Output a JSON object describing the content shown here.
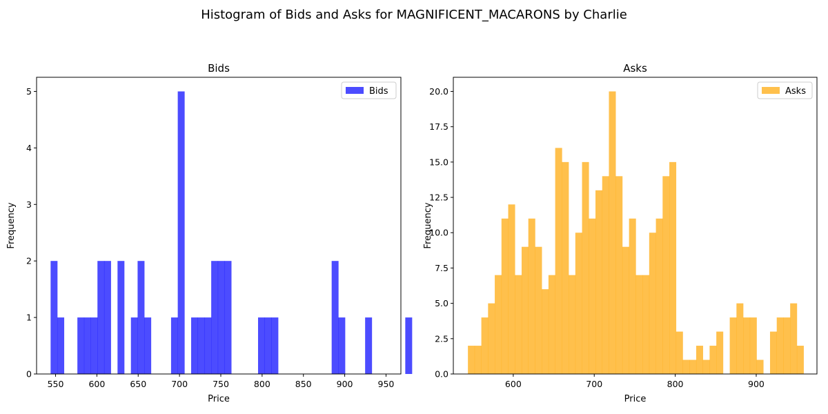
{
  "figure": {
    "title": "Histogram of Bids and Asks for MAGNIFICENT_MACARONS by Charlie"
  },
  "chart_data": [
    {
      "type": "bar",
      "subtype": "histogram",
      "title": "Bids",
      "xlabel": "Price",
      "ylabel": "Frequency",
      "xlim": [
        527,
        968
      ],
      "ylim": [
        0,
        5.25
      ],
      "xticks": [
        550,
        600,
        650,
        700,
        750,
        800,
        850,
        900,
        950
      ],
      "yticks": [
        0,
        1,
        2,
        3,
        4,
        5
      ],
      "ytick_labels": [
        "0",
        "1",
        "2",
        "3",
        "4",
        "5"
      ],
      "bin_start": 544,
      "bin_width": 8.1,
      "values": [
        2,
        1,
        0,
        0,
        1,
        1,
        1,
        2,
        2,
        0,
        2,
        0,
        1,
        2,
        1,
        0,
        0,
        0,
        1,
        5,
        0,
        1,
        1,
        1,
        2,
        2,
        2,
        0,
        0,
        0,
        0,
        1,
        1,
        1,
        0,
        0,
        0,
        0,
        0,
        0,
        0,
        0,
        2,
        1,
        0,
        0,
        0,
        1,
        0,
        0,
        0,
        0,
        0,
        1
      ],
      "color": "#0000ff",
      "opacity": 0.7,
      "grid": false,
      "legend": {
        "placement": "upper right",
        "entries": [
          "Bids"
        ]
      }
    },
    {
      "type": "bar",
      "subtype": "histogram",
      "title": "Asks",
      "xlabel": "Price",
      "ylabel": "Frequency",
      "xlim": [
        526,
        975
      ],
      "ylim": [
        0,
        21
      ],
      "xticks": [
        600,
        700,
        800,
        900
      ],
      "yticks": [
        0,
        2.5,
        5,
        7.5,
        10,
        12.5,
        15,
        17.5,
        20
      ],
      "ytick_labels": [
        "0.0",
        "2.5",
        "5.0",
        "7.5",
        "10.0",
        "12.5",
        "15.0",
        "17.5",
        "20.0"
      ],
      "bin_start": 544,
      "bin_width": 8.29,
      "values": [
        2,
        2,
        4,
        5,
        7,
        11,
        12,
        7,
        9,
        11,
        9,
        6,
        7,
        16,
        15,
        7,
        10,
        15,
        11,
        13,
        14,
        20,
        14,
        9,
        11,
        7,
        7,
        10,
        11,
        14,
        15,
        3,
        1,
        1,
        2,
        1,
        2,
        3,
        0,
        4,
        5,
        4,
        4,
        1,
        0,
        3,
        4,
        4,
        5,
        2
      ],
      "color": "#ffa500",
      "opacity": 0.7,
      "grid": false,
      "legend": {
        "placement": "upper right",
        "entries": [
          "Asks"
        ]
      }
    }
  ]
}
